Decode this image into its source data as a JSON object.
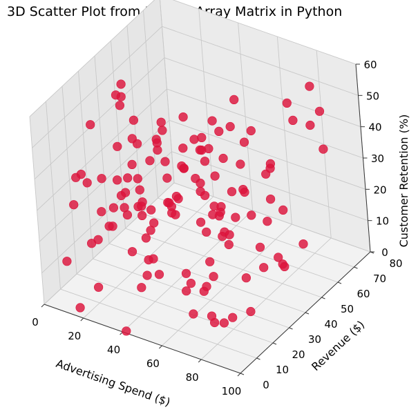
{
  "chart_data": {
    "type": "scatter",
    "projection": "3d",
    "title": "3D Scatter Plot from NumPy Array Matrix in Python",
    "xlabel": "Advertising Spend ($)",
    "ylabel": "Revenue ($)",
    "zlabel": "Customer Retention (%)",
    "xlim": [
      0,
      100
    ],
    "ylim": [
      0,
      80
    ],
    "zlim": [
      0,
      60
    ],
    "xticks": [
      0,
      20,
      40,
      60,
      80,
      100
    ],
    "yticks": [
      0,
      10,
      20,
      30,
      40,
      50,
      60,
      70,
      80
    ],
    "zticks": [
      0,
      10,
      20,
      30,
      40,
      50,
      60
    ],
    "grid": true,
    "marker_color": "#dc143c",
    "points": [
      [
        31,
        3,
        35
      ],
      [
        49,
        11,
        20
      ],
      [
        58,
        2,
        42
      ],
      [
        56,
        6,
        19
      ],
      [
        75,
        3,
        12
      ],
      [
        73,
        14,
        15
      ],
      [
        80,
        13,
        40
      ],
      [
        54,
        23,
        5
      ],
      [
        86,
        24,
        5
      ],
      [
        68,
        19,
        32
      ],
      [
        40,
        14,
        55
      ],
      [
        70,
        4,
        48
      ],
      [
        83,
        6,
        29
      ],
      [
        90,
        36,
        36
      ],
      [
        80,
        8,
        10
      ],
      [
        72,
        27,
        34
      ],
      [
        70,
        30,
        24
      ],
      [
        60,
        10,
        54
      ],
      [
        66,
        24,
        26
      ],
      [
        57,
        36,
        4
      ],
      [
        46,
        11,
        26
      ],
      [
        70,
        36,
        34
      ],
      [
        48,
        4,
        14
      ],
      [
        70,
        32,
        19
      ],
      [
        88,
        40,
        15
      ],
      [
        76,
        36,
        36
      ],
      [
        65,
        26,
        51
      ],
      [
        75,
        35,
        8
      ],
      [
        90,
        41,
        12
      ],
      [
        73,
        17,
        2
      ],
      [
        66,
        33,
        28
      ],
      [
        80,
        40,
        10
      ],
      [
        79,
        21,
        3
      ],
      [
        91,
        39,
        14
      ],
      [
        60,
        32,
        51
      ],
      [
        55,
        36,
        44
      ],
      [
        87,
        46,
        27
      ],
      [
        55,
        26,
        43
      ],
      [
        55,
        41,
        42
      ],
      [
        59,
        49,
        17
      ],
      [
        42,
        21,
        45
      ],
      [
        68,
        52,
        8
      ],
      [
        78,
        17,
        3
      ],
      [
        71,
        58,
        31
      ],
      [
        54,
        17,
        44
      ],
      [
        29,
        11,
        26
      ],
      [
        41,
        17,
        15
      ],
      [
        55,
        45,
        12
      ],
      [
        55,
        49,
        35
      ],
      [
        66,
        20,
        9
      ],
      [
        27,
        22,
        31
      ],
      [
        63,
        26,
        40
      ],
      [
        90,
        62,
        47
      ],
      [
        72,
        44,
        23
      ],
      [
        41,
        1,
        0
      ],
      [
        15,
        18,
        52
      ],
      [
        53,
        30,
        57
      ],
      [
        41,
        8,
        22
      ],
      [
        36,
        21,
        7
      ],
      [
        71,
        54,
        16
      ],
      [
        29,
        9,
        27
      ],
      [
        88,
        55,
        12
      ],
      [
        67,
        31,
        28
      ],
      [
        57,
        64,
        37
      ],
      [
        57,
        47,
        12
      ],
      [
        83,
        60,
        48
      ],
      [
        54,
        26,
        6
      ],
      [
        18,
        32,
        17
      ],
      [
        46,
        14,
        27
      ],
      [
        73,
        53,
        32
      ],
      [
        48,
        52,
        44
      ],
      [
        95,
        63,
        40
      ],
      [
        51,
        27,
        8
      ],
      [
        46,
        43,
        42
      ],
      [
        33,
        24,
        24
      ],
      [
        52,
        45,
        21
      ],
      [
        45,
        30,
        24
      ],
      [
        53,
        60,
        48
      ],
      [
        52,
        51,
        42
      ],
      [
        63,
        51,
        25
      ],
      [
        31,
        15,
        50
      ],
      [
        47,
        26,
        29
      ],
      [
        48,
        34,
        44
      ],
      [
        41,
        16,
        34
      ],
      [
        49,
        41,
        27
      ],
      [
        32,
        14,
        35
      ],
      [
        43,
        50,
        20
      ],
      [
        80,
        79,
        41
      ],
      [
        61,
        52,
        33
      ],
      [
        43,
        39,
        34
      ],
      [
        34,
        22,
        37
      ],
      [
        49,
        28,
        31
      ],
      [
        48,
        46,
        34
      ],
      [
        20,
        8,
        20
      ],
      [
        64,
        66,
        27
      ],
      [
        46,
        42,
        30
      ],
      [
        73,
        82,
        46
      ],
      [
        63,
        53,
        40
      ],
      [
        20,
        10,
        5
      ],
      [
        10,
        16,
        36
      ],
      [
        30,
        39,
        37
      ],
      [
        66,
        76,
        42
      ],
      [
        33,
        24,
        27
      ],
      [
        26,
        25,
        34
      ],
      [
        31,
        38,
        40
      ],
      [
        22,
        20,
        26
      ],
      [
        17,
        38,
        30
      ],
      [
        14,
        38,
        51
      ],
      [
        28,
        41,
        39
      ],
      [
        34,
        39,
        21
      ],
      [
        35,
        39,
        18
      ],
      [
        8,
        15,
        35
      ],
      [
        49,
        61,
        38
      ],
      [
        36,
        36,
        23
      ],
      [
        13,
        38,
        48
      ],
      [
        24,
        32,
        21
      ],
      [
        9,
        44,
        51
      ],
      [
        14,
        6,
        32
      ],
      [
        23,
        50,
        39
      ],
      [
        14,
        35,
        17
      ],
      [
        1,
        29,
        25
      ],
      [
        6,
        32,
        26
      ],
      [
        16,
        43,
        34
      ],
      [
        32,
        50,
        27
      ],
      [
        10,
        49,
        15
      ],
      [
        16,
        42,
        42
      ],
      [
        39,
        61,
        20
      ],
      [
        14,
        35,
        53
      ],
      [
        9,
        24,
        11
      ],
      [
        16,
        58,
        31
      ],
      [
        10,
        4,
        14
      ],
      [
        15,
        31,
        28
      ],
      [
        16,
        3,
        1
      ],
      [
        27,
        37,
        14
      ]
    ]
  }
}
